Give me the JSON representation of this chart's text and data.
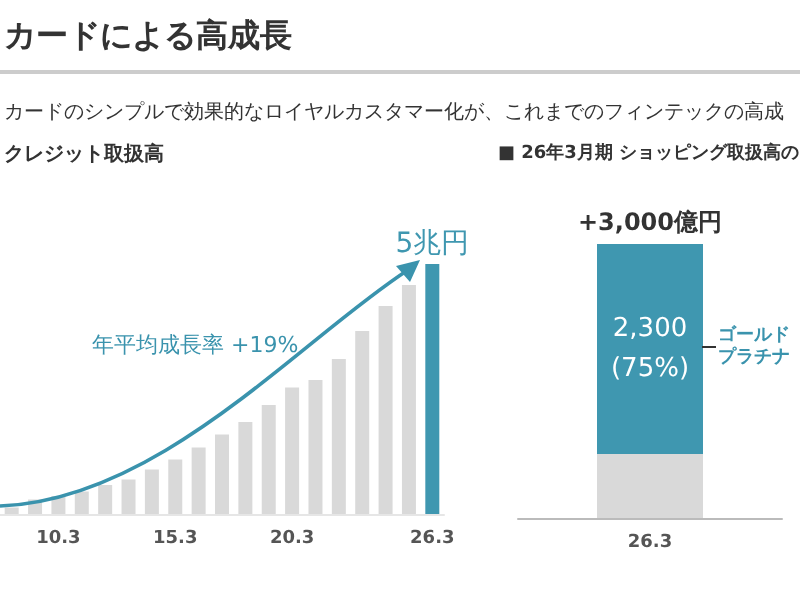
{
  "chart_data": [
    {
      "type": "bar",
      "title": "カードによる高成長",
      "subtitle": "カードのシンプルで効果的なロイヤルカスタマー化が、これまでのフィンテックの高成",
      "ylabel": "クレジット取扱高",
      "categories": [
        null,
        null,
        "10.3",
        null,
        null,
        null,
        null,
        "15.3",
        null,
        null,
        null,
        null,
        "20.3",
        null,
        null,
        null,
        null,
        null,
        "26.3"
      ],
      "values": [
        0.13,
        0.29,
        0.36,
        0.45,
        0.58,
        0.69,
        0.89,
        1.09,
        1.33,
        1.59,
        1.84,
        2.18,
        2.53,
        2.68,
        3.1,
        3.66,
        4.16,
        4.58,
        5
      ],
      "colors": [
        "#d9d9d9",
        "#d9d9d9",
        "#d9d9d9",
        "#d9d9d9",
        "#d9d9d9",
        "#d9d9d9",
        "#d9d9d9",
        "#d9d9d9",
        "#d9d9d9",
        "#d9d9d9",
        "#d9d9d9",
        "#d9d9d9",
        "#d9d9d9",
        "#d9d9d9",
        "#d9d9d9",
        "#d9d9d9",
        "#d9d9d9",
        "#d9d9d9",
        "#3f97b0"
      ],
      "value_labels": [
        null,
        null,
        null,
        null,
        null,
        null,
        null,
        null,
        null,
        null,
        null,
        null,
        null,
        null,
        null,
        null,
        null,
        null,
        "5兆円"
      ],
      "annotations": [
        "年平均成長率 +19%"
      ]
    },
    {
      "type": "bar",
      "stacked": true,
      "title": "■ 26年3月期 ショッピング取扱高の",
      "categories": [
        "26.3"
      ],
      "series": [
        {
          "color": "#d9d9d9",
          "values": [
            700
          ]
        },
        {
          "color": "#3f97b0",
          "values": [
            2300
          ],
          "value_labels": [
            "2,300\n(75%)"
          ]
        }
      ],
      "totals": [
        "+3,000億円"
      ],
      "annotations": [
        "ゴールド",
        "プラチナ"
      ]
    }
  ]
}
